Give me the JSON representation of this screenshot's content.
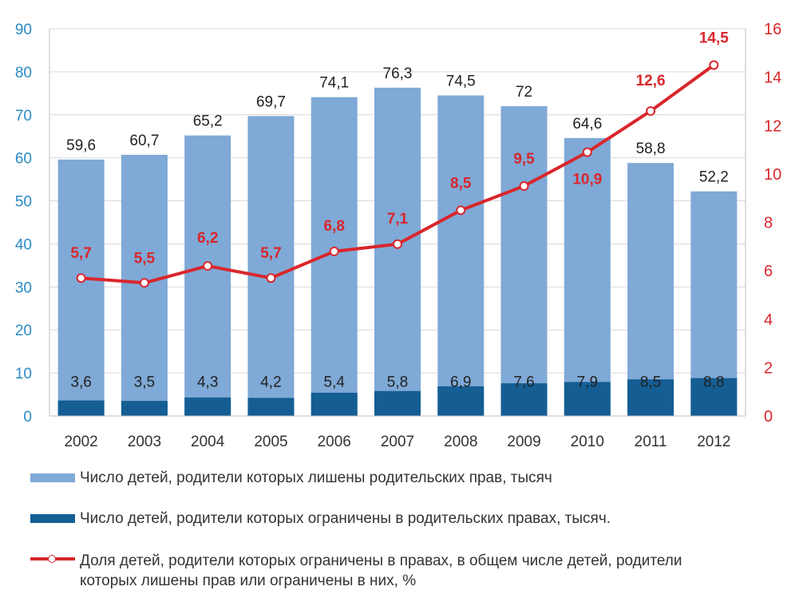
{
  "colors": {
    "bar_light": "#7fa9d6",
    "bar_dark": "#145e94",
    "line": "#d9262c",
    "left_axis": "#2a8ac4",
    "right_axis": "#d9262c"
  },
  "chart_data": {
    "type": "bar",
    "categories": [
      "2002",
      "2003",
      "2004",
      "2005",
      "2006",
      "2007",
      "2008",
      "2009",
      "2010",
      "2011",
      "2012"
    ],
    "series": [
      {
        "name": "Число детей, родители которых лишены родительских прав, тысяч",
        "type": "bar",
        "axis": "left",
        "values": [
          59.6,
          60.7,
          65.2,
          69.7,
          74.1,
          76.3,
          74.5,
          72,
          64.6,
          58.8,
          52.2
        ],
        "labels": [
          "59,6",
          "60,7",
          "65,2",
          "69,7",
          "74,1",
          "76,3",
          "74,5",
          "72",
          "64,6",
          "58,8",
          "52,2"
        ]
      },
      {
        "name": "Число детей, родители которых ограничены в родительских правах, тысяч.",
        "type": "bar",
        "axis": "left",
        "values": [
          3.6,
          3.5,
          4.3,
          4.2,
          5.4,
          5.8,
          6.9,
          7.6,
          7.9,
          8.5,
          8.8
        ],
        "labels": [
          "3,6",
          "3,5",
          "4,3",
          "4,2",
          "5,4",
          "5,8",
          "6,9",
          "7,6",
          "7,9",
          "8,5",
          "8,8"
        ]
      },
      {
        "name": "Доля детей, родители которых ограничены в правах, в общем числе детей, родители которых лишены прав или ограничены в них, %",
        "type": "line",
        "axis": "right",
        "values": [
          5.7,
          5.5,
          6.2,
          5.7,
          6.8,
          7.1,
          8.5,
          9.5,
          10.9,
          12.6,
          14.5
        ],
        "labels": [
          "5,7",
          "5,5",
          "6,2",
          "5,7",
          "6,8",
          "7,1",
          "8,5",
          "9,5",
          "10,9",
          "12,6",
          "14,5"
        ]
      }
    ],
    "y_left": {
      "min": 0,
      "max": 90,
      "ticks": [
        "0",
        "10",
        "20",
        "30",
        "40",
        "50",
        "60",
        "70",
        "80",
        "90"
      ]
    },
    "y_right": {
      "min": 0,
      "max": 16,
      "ticks": [
        "0",
        "2",
        "4",
        "6",
        "8",
        "10",
        "12",
        "14",
        "16"
      ]
    },
    "grid": true,
    "legend_position": "bottom"
  },
  "legend": {
    "item1": "Число детей, родители которых лишены родительских прав, тысяч",
    "item2": "Число детей, родители которых ограничены в родительских правах, тысяч.",
    "item3_line1": "Доля детей, родители которых ограничены в правах, в общем числе детей, родители",
    "item3_line2": "которых лишены прав или ограничены в них, %"
  }
}
